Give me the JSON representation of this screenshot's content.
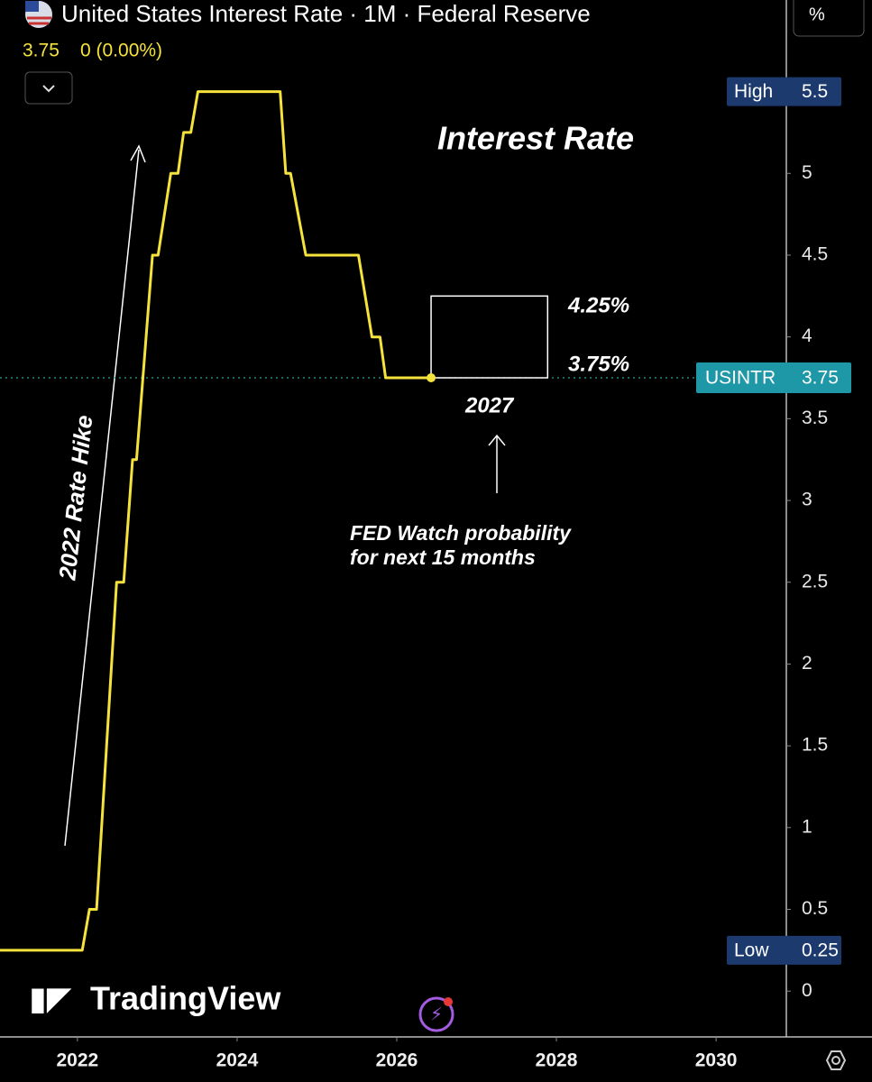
{
  "chart_data": {
    "type": "line",
    "title": "United States Interest Rate · 1M · Federal Reserve",
    "last_value": 3.75,
    "change": "0 (0.00%)",
    "scale_button": "%",
    "symbol": "USINTR",
    "high_label": "High",
    "high": 5.5,
    "low_label": "Low",
    "low": 0.25,
    "annotation_title": "Interest Rate",
    "hike_label": "2022 Rate Hike",
    "forecast": {
      "label": "2027",
      "x": [
        2026.43,
        2027.89
      ],
      "values": [
        4.25,
        3.75
      ],
      "value_labels": [
        "4.25%",
        "3.75%"
      ]
    },
    "note": [
      "FED Watch probability",
      "for next 15 months"
    ],
    "brand": "TradingView",
    "x": [
      2021.03,
      2022.06,
      2022.15,
      2022.24,
      2022.49,
      2022.58,
      2022.69,
      2022.74,
      2022.94,
      2023.01,
      2023.17,
      2023.26,
      2023.33,
      2023.42,
      2023.51,
      2024.54,
      2024.61,
      2024.67,
      2024.86,
      2025.52,
      2025.69,
      2025.79,
      2025.86,
      2026.43
    ],
    "series": [
      {
        "name": "USINTR",
        "color": "#f5e23c",
        "values": [
          0.25,
          0.25,
          0.5,
          0.5,
          2.5,
          2.5,
          3.25,
          3.25,
          4.5,
          4.5,
          5,
          5,
          5.25,
          5.25,
          5.5,
          5.5,
          5,
          5,
          4.5,
          4.5,
          4,
          4,
          3.75,
          3.75
        ]
      }
    ],
    "xlim": [
      2021.03,
      2030.88
    ],
    "xticks": [
      2022,
      2024,
      2026,
      2028,
      2030
    ],
    "ylim": [
      -0.28,
      6.06
    ],
    "yticks": [
      0,
      0.5,
      1,
      1.5,
      2,
      2.5,
      3,
      3.5,
      4,
      4.5,
      5
    ]
  }
}
